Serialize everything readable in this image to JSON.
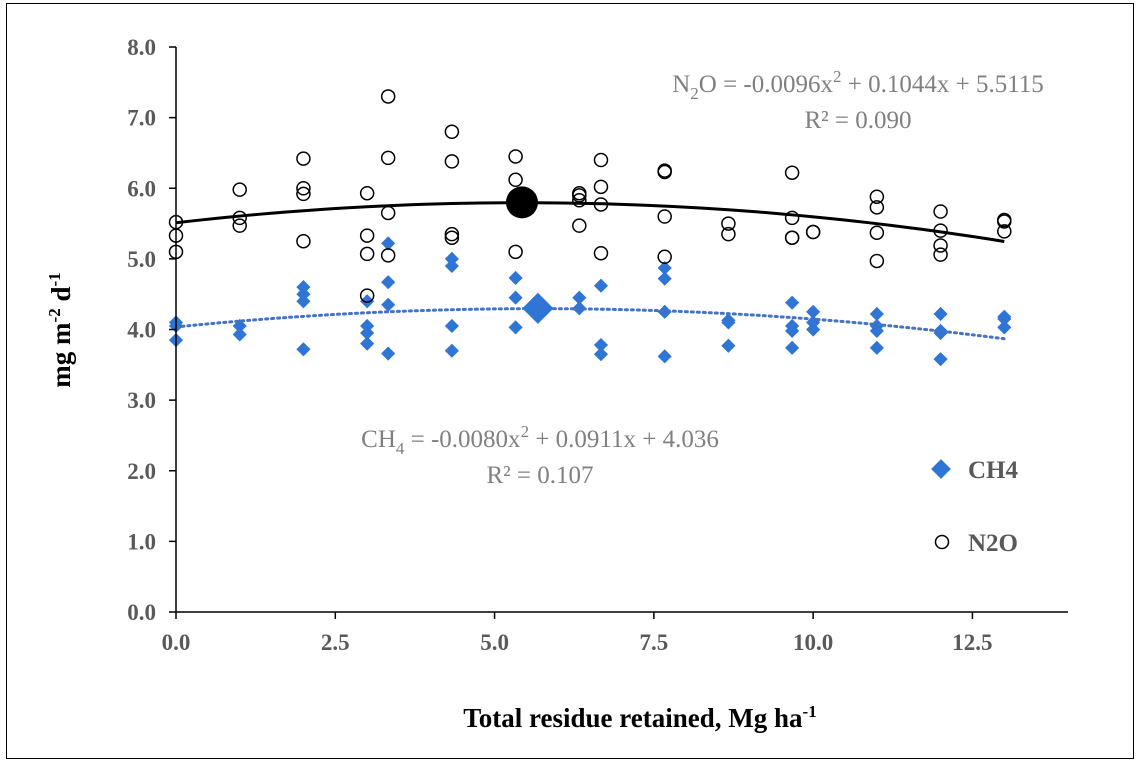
{
  "chart_data": {
    "type": "scatter",
    "xlabel": "Total residue retained, Mg ha",
    "xlabel_sup": "-1",
    "ylabel_parts": [
      "mg m",
      "-2",
      " d",
      "-1"
    ],
    "xlim": [
      0,
      14
    ],
    "ylim": [
      0,
      8
    ],
    "x_ticks": [
      0,
      2.5,
      5,
      7.5,
      10,
      12.5
    ],
    "x_tick_labels": [
      "0.0",
      "2.5",
      "5.0",
      "7.5",
      "10.0",
      "12.5"
    ],
    "y_ticks": [
      0,
      1,
      2,
      3,
      4,
      5,
      6,
      7,
      8
    ],
    "y_tick_labels": [
      "0.0",
      "1.0",
      "2.0",
      "3.0",
      "4.0",
      "5.0",
      "6.0",
      "7.0",
      "8.0"
    ],
    "grid": false,
    "legend_position": "bottom-right",
    "series": [
      {
        "name": "CH4",
        "marker": "diamond",
        "color": "#2e75d6",
        "trend_coeffs": [
          -0.008,
          0.0911,
          4.036
        ],
        "trend_style": "dotted",
        "equation_parts": [
          "CH",
          "4",
          " = -0.0080x",
          "2",
          " + 0.0911x + 4.036"
        ],
        "r2": "R² = 0.107",
        "mean_point": [
          5.68,
          4.3
        ],
        "points": [
          [
            0,
            4.1
          ],
          [
            0,
            3.85
          ],
          [
            0,
            4.05
          ],
          [
            1,
            4.05
          ],
          [
            1,
            3.93
          ],
          [
            2,
            4.6
          ],
          [
            2,
            4.5
          ],
          [
            2,
            4.4
          ],
          [
            2,
            3.72
          ],
          [
            3,
            4.4
          ],
          [
            3,
            4.05
          ],
          [
            3,
            3.95
          ],
          [
            3,
            3.8
          ],
          [
            3.33,
            5.22
          ],
          [
            3.33,
            4.67
          ],
          [
            3.33,
            4.35
          ],
          [
            3.33,
            3.66
          ],
          [
            4.33,
            5.0
          ],
          [
            4.33,
            4.9
          ],
          [
            4.33,
            4.05
          ],
          [
            4.33,
            3.7
          ],
          [
            5.33,
            4.73
          ],
          [
            5.33,
            4.45
          ],
          [
            5.33,
            4.03
          ],
          [
            6.33,
            4.45
          ],
          [
            6.33,
            4.3
          ],
          [
            6.67,
            4.62
          ],
          [
            6.67,
            3.78
          ],
          [
            6.67,
            3.65
          ],
          [
            7.67,
            4.87
          ],
          [
            7.67,
            4.72
          ],
          [
            7.67,
            4.25
          ],
          [
            7.67,
            3.62
          ],
          [
            8.67,
            4.13
          ],
          [
            8.67,
            4.1
          ],
          [
            8.67,
            3.77
          ],
          [
            9.67,
            4.38
          ],
          [
            9.67,
            4.05
          ],
          [
            9.67,
            3.98
          ],
          [
            9.67,
            3.74
          ],
          [
            10,
            4.25
          ],
          [
            10,
            4.1
          ],
          [
            10,
            4.0
          ],
          [
            11,
            4.22
          ],
          [
            11,
            4.05
          ],
          [
            11,
            3.98
          ],
          [
            11,
            3.74
          ],
          [
            12,
            4.22
          ],
          [
            12,
            3.98
          ],
          [
            12,
            3.95
          ],
          [
            12,
            3.58
          ],
          [
            13,
            4.18
          ],
          [
            13,
            4.15
          ],
          [
            13,
            4.03
          ]
        ]
      },
      {
        "name": "N2O",
        "marker": "circle-open",
        "color": "#000000",
        "trend_coeffs": [
          -0.0096,
          0.1044,
          5.5115
        ],
        "trend_style": "solid",
        "equation_parts": [
          "N",
          "2",
          "O = -0.0096x",
          "2",
          " + 0.1044x + 5.5115"
        ],
        "r2": "R² = 0.090",
        "mean_point": [
          5.43,
          5.8
        ],
        "points": [
          [
            0,
            5.52
          ],
          [
            0,
            5.33
          ],
          [
            0,
            5.1
          ],
          [
            1,
            5.98
          ],
          [
            1,
            5.58
          ],
          [
            1,
            5.47
          ],
          [
            2,
            6.42
          ],
          [
            2,
            6.0
          ],
          [
            2,
            5.92
          ],
          [
            2,
            5.25
          ],
          [
            3,
            5.93
          ],
          [
            3,
            5.33
          ],
          [
            3,
            5.07
          ],
          [
            3,
            4.48
          ],
          [
            3.33,
            7.3
          ],
          [
            3.33,
            6.43
          ],
          [
            3.33,
            5.65
          ],
          [
            3.33,
            5.05
          ],
          [
            4.33,
            6.8
          ],
          [
            4.33,
            6.38
          ],
          [
            4.33,
            5.35
          ],
          [
            4.33,
            5.3
          ],
          [
            5.33,
            6.45
          ],
          [
            5.33,
            6.12
          ],
          [
            5.33,
            5.1
          ],
          [
            6.33,
            5.93
          ],
          [
            6.33,
            5.9
          ],
          [
            6.33,
            5.83
          ],
          [
            6.33,
            5.47
          ],
          [
            6.67,
            6.4
          ],
          [
            6.67,
            6.02
          ],
          [
            6.67,
            5.77
          ],
          [
            6.67,
            5.08
          ],
          [
            7.67,
            6.25
          ],
          [
            7.67,
            6.23
          ],
          [
            7.67,
            5.6
          ],
          [
            7.67,
            5.03
          ],
          [
            8.67,
            5.5
          ],
          [
            8.67,
            5.35
          ],
          [
            9.67,
            6.22
          ],
          [
            9.67,
            5.58
          ],
          [
            9.67,
            5.3
          ],
          [
            9.67,
            5.3
          ],
          [
            10,
            5.38
          ],
          [
            10,
            5.38
          ],
          [
            11,
            5.88
          ],
          [
            11,
            5.73
          ],
          [
            11,
            5.37
          ],
          [
            11,
            4.97
          ],
          [
            12,
            5.67
          ],
          [
            12,
            5.4
          ],
          [
            12,
            5.19
          ],
          [
            12,
            5.06
          ],
          [
            13,
            5.55
          ],
          [
            13,
            5.53
          ],
          [
            13,
            5.39
          ]
        ]
      }
    ]
  }
}
